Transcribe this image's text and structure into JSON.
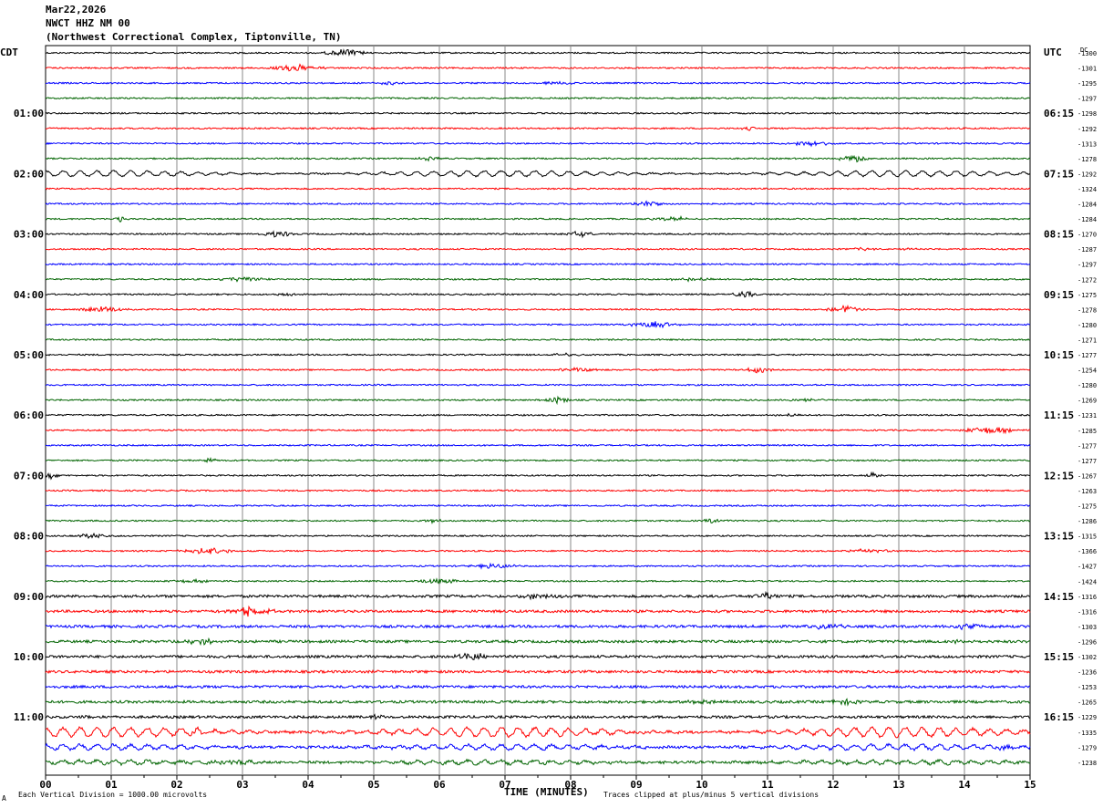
{
  "header": {
    "date": "Mar22,2026",
    "station": "NWCT HHZ NM 00",
    "location": "(Northwest Correctional Complex, Tiptonville, TN)"
  },
  "left_zone_label": "CDT",
  "right_zone_label": "UTC",
  "dc_label": "DC",
  "footer": {
    "scale_note": "Each Vertical Division = 1000.00 microvolts",
    "clip_note": "Traces clipped at plus/minus 5 vertical divisions",
    "corner_mark": "A"
  },
  "colors": {
    "trace_cycle": [
      "#000000",
      "#ff0000",
      "#0000ff",
      "#006400"
    ],
    "grid": "#888888"
  },
  "chart_data": {
    "type": "line",
    "title": "NWCT HHZ NM 00",
    "xlabel": "TIME (MINUTES)",
    "x_range": [
      0,
      15
    ],
    "x_ticks": [
      "00",
      "01",
      "02",
      "03",
      "04",
      "05",
      "06",
      "07",
      "08",
      "09",
      "10",
      "11",
      "12",
      "13",
      "14",
      "15"
    ],
    "rows_per_hour": 4,
    "left_time_labels": [
      "01:00",
      "02:00",
      "03:00",
      "04:00",
      "05:00",
      "06:00",
      "07:00",
      "08:00",
      "09:00",
      "10:00",
      "11:00"
    ],
    "right_time_labels": [
      "06:15",
      "07:15",
      "08:15",
      "09:15",
      "10:15",
      "11:15",
      "12:15",
      "13:15",
      "14:15",
      "15:15",
      "16:15"
    ],
    "dc_offsets": [
      "-1300",
      "-1301",
      "-1295",
      "-1297",
      "-1298",
      "-1292",
      "-1313",
      "-1278",
      "-1292",
      "-1324",
      "-1284",
      "-1284",
      "-1270",
      "-1287",
      "-1297",
      "-1272",
      "-1275",
      "-1278",
      "-1280",
      "-1271",
      "-1277",
      "-1254",
      "-1280",
      "-1269",
      "-1231",
      "-1285",
      "-1277",
      "-1277",
      "-1267",
      "-1263",
      "-1275",
      "-1286",
      "-1315",
      "-1366",
      "-1427",
      "-1424",
      "-1316",
      "-1316",
      "-1303",
      "-1296",
      "-1302",
      "-1236",
      "-1253",
      "-1265",
      "-1229",
      "-1335",
      "-1279",
      "-1238"
    ],
    "notable_events": [
      {
        "row": 8,
        "type": "sinusoidal",
        "amplitude": 1.0
      },
      {
        "row": 45,
        "type": "sinusoidal",
        "amplitude": 1.6
      },
      {
        "row": 46,
        "type": "sinusoidal",
        "amplitude": 0.9
      },
      {
        "row": 47,
        "type": "sinusoidal",
        "amplitude": 0.7
      }
    ]
  }
}
